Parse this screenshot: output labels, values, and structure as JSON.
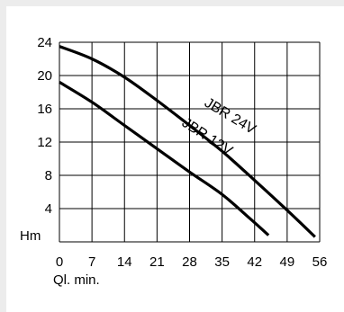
{
  "chart_data": {
    "type": "line",
    "title": "",
    "xlabel": "Ql. min.",
    "ylabel": "Hm",
    "xlim": [
      0,
      56
    ],
    "ylim": [
      0,
      24
    ],
    "xticks": [
      0,
      7,
      14,
      21,
      28,
      35,
      42,
      49,
      56
    ],
    "yticks": [
      4,
      8,
      12,
      16,
      20,
      24
    ],
    "grid": true,
    "series": [
      {
        "name": "JBR 24V",
        "x": [
          0,
          7,
          14,
          21,
          28,
          35,
          42,
          49,
          55
        ],
        "y": [
          23.5,
          22.0,
          19.8,
          17.0,
          14.0,
          10.9,
          7.4,
          3.8,
          0.6
        ]
      },
      {
        "name": "JBR 12V",
        "x": [
          0,
          7,
          14,
          21,
          28,
          35,
          41,
          45
        ],
        "y": [
          19.2,
          16.8,
          14.0,
          11.2,
          8.4,
          5.7,
          2.8,
          0.8
        ]
      }
    ]
  }
}
